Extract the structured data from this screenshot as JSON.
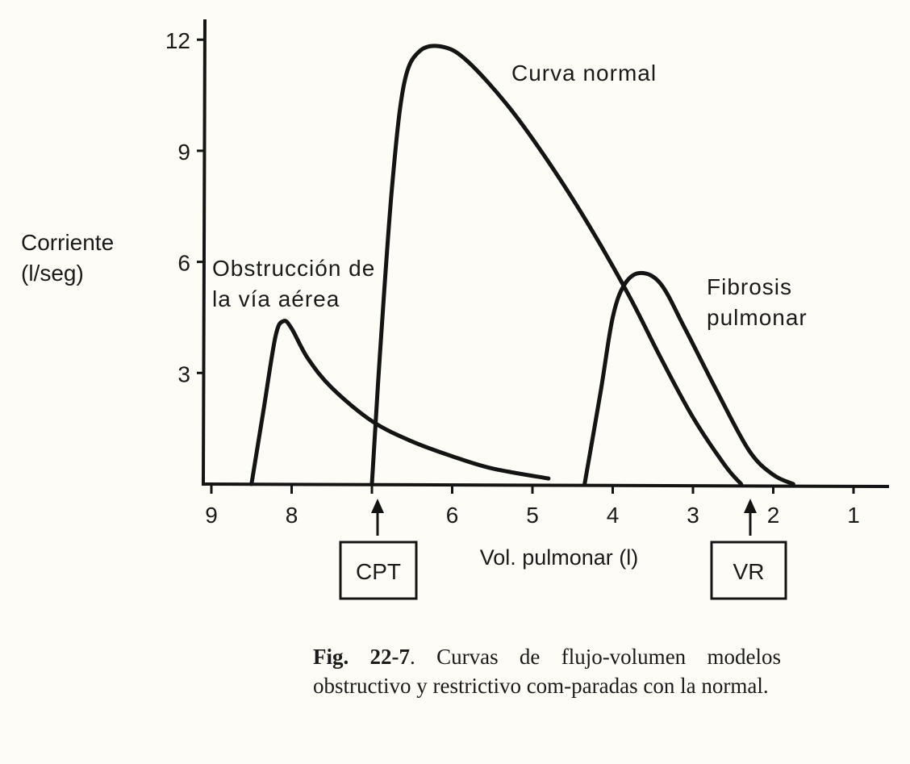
{
  "chart_data": {
    "type": "line",
    "title": "Curvas de flujo-volumen",
    "xlabel": "Vol. pulmonar (l)",
    "ylabel": "Corriente (l/seg)",
    "ylabel_lines": [
      "Corriente",
      "(l/seg)"
    ],
    "x_reversed": true,
    "xlim": [
      9.2,
      0.6
    ],
    "ylim": [
      0,
      12.5
    ],
    "x_ticks": [
      9,
      8,
      7,
      6,
      5,
      4,
      3,
      2,
      1
    ],
    "x_tick_labels": [
      "9",
      "8",
      "",
      "6",
      "5",
      "4",
      "3",
      "2",
      "1"
    ],
    "y_ticks": [
      3,
      6,
      9,
      12
    ],
    "y_tick_labels": [
      "3",
      "6",
      "9",
      "12"
    ],
    "grid": false,
    "series": [
      {
        "name": "Curva normal",
        "label_lines": [
          "Curva normal"
        ],
        "points": [
          [
            7.0,
            0
          ],
          [
            6.9,
            3.5
          ],
          [
            6.75,
            8.0
          ],
          [
            6.6,
            10.8
          ],
          [
            6.4,
            11.7
          ],
          [
            6.1,
            11.8
          ],
          [
            5.8,
            11.4
          ],
          [
            5.3,
            10.2
          ],
          [
            4.8,
            8.7
          ],
          [
            4.3,
            7.0
          ],
          [
            3.8,
            5.1
          ],
          [
            3.4,
            3.4
          ],
          [
            3.0,
            1.8
          ],
          [
            2.6,
            0.5
          ],
          [
            2.4,
            0
          ]
        ]
      },
      {
        "name": "Obstrucción de la vía aérea",
        "label_lines": [
          "Obstrucción de",
          "la vía aérea"
        ],
        "points": [
          [
            8.5,
            0
          ],
          [
            8.35,
            2.0
          ],
          [
            8.2,
            4.0
          ],
          [
            8.1,
            4.4
          ],
          [
            8.0,
            4.2
          ],
          [
            7.8,
            3.4
          ],
          [
            7.5,
            2.6
          ],
          [
            7.0,
            1.7
          ],
          [
            6.5,
            1.15
          ],
          [
            6.0,
            0.75
          ],
          [
            5.5,
            0.42
          ],
          [
            4.8,
            0.15
          ]
        ]
      },
      {
        "name": "Fibrosis pulmonar",
        "label_lines": [
          "Fibrosis",
          "pulmonar"
        ],
        "points": [
          [
            4.35,
            0
          ],
          [
            4.15,
            2.5
          ],
          [
            4.0,
            4.5
          ],
          [
            3.85,
            5.4
          ],
          [
            3.65,
            5.7
          ],
          [
            3.4,
            5.4
          ],
          [
            3.1,
            4.2
          ],
          [
            2.7,
            2.5
          ],
          [
            2.3,
            0.9
          ],
          [
            2.0,
            0.25
          ],
          [
            1.75,
            0
          ]
        ]
      }
    ],
    "annotations": [
      {
        "label": "CPT",
        "x": 7.0,
        "kind": "arrow-box"
      },
      {
        "label": "VR",
        "x": 2.4,
        "kind": "arrow-box"
      }
    ]
  },
  "caption": {
    "figure_number": "Fig. 22-7",
    "text": ". Curvas de flujo-volumen modelos obstructivo y restrictivo com-paradas con la normal."
  }
}
